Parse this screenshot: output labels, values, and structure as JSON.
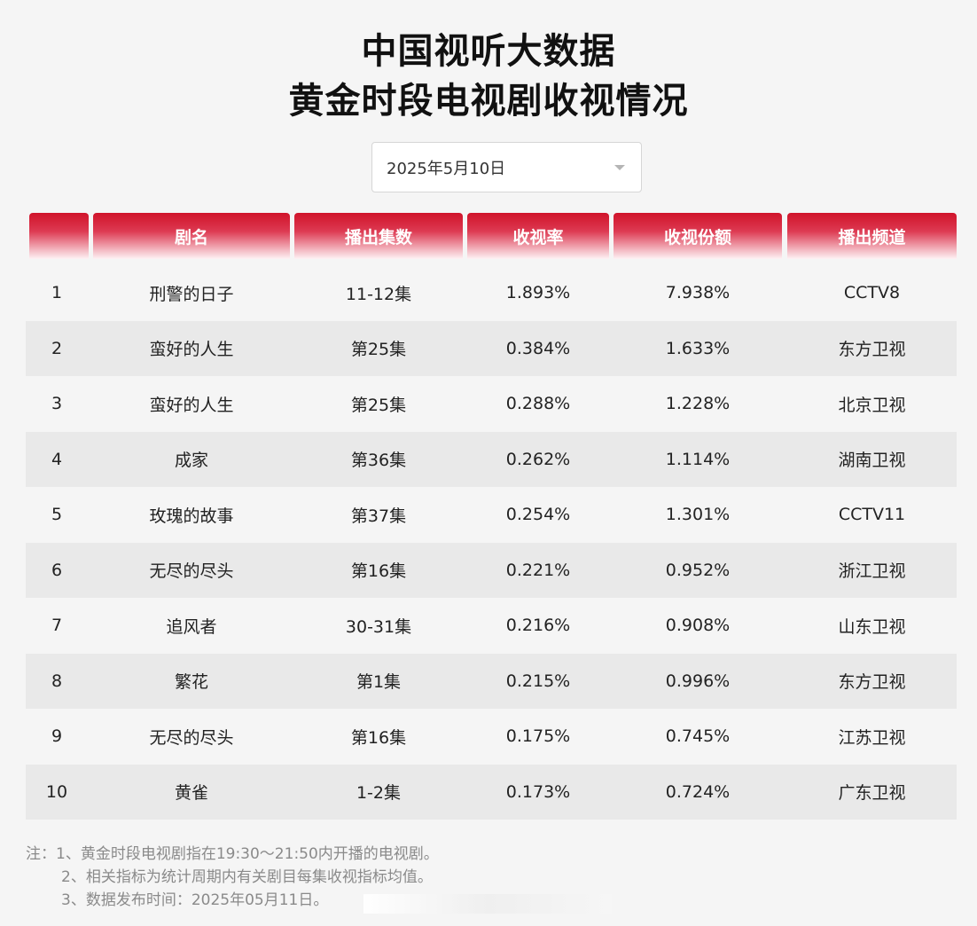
{
  "title": {
    "line1": "中国视听大数据",
    "line2": "黄金时段电视剧收视情况"
  },
  "date_select": {
    "value": "2025年5月10日"
  },
  "table": {
    "headers": [
      "",
      "剧名",
      "播出集数",
      "收视率",
      "收视份额",
      "播出频道"
    ],
    "rows": [
      [
        "1",
        "刑警的日子",
        "11-12集",
        "1.893%",
        "7.938%",
        "CCTV8"
      ],
      [
        "2",
        "蛮好的人生",
        "第25集",
        "0.384%",
        "1.633%",
        "东方卫视"
      ],
      [
        "3",
        "蛮好的人生",
        "第25集",
        "0.288%",
        "1.228%",
        "北京卫视"
      ],
      [
        "4",
        "成家",
        "第36集",
        "0.262%",
        "1.114%",
        "湖南卫视"
      ],
      [
        "5",
        "玫瑰的故事",
        "第37集",
        "0.254%",
        "1.301%",
        "CCTV11"
      ],
      [
        "6",
        "无尽的尽头",
        "第16集",
        "0.221%",
        "0.952%",
        "浙江卫视"
      ],
      [
        "7",
        "追风者",
        "30-31集",
        "0.216%",
        "0.908%",
        "山东卫视"
      ],
      [
        "8",
        "繁花",
        "第1集",
        "0.215%",
        "0.996%",
        "东方卫视"
      ],
      [
        "9",
        "无尽的尽头",
        "第16集",
        "0.175%",
        "0.745%",
        "江苏卫视"
      ],
      [
        "10",
        "黄雀",
        "1-2集",
        "0.173%",
        "0.724%",
        "广东卫视"
      ]
    ]
  },
  "notes": [
    "注：1、黄金时段电视剧指在19:30～21:50内开播的电视剧。",
    "2、相关指标为统计周期内有关剧目每集收视指标均值。",
    "3、数据发布时间：2025年05月11日。"
  ],
  "colors": {
    "header_red": "#d0132a",
    "alt_row": "#e9e9e9",
    "background": "#f5f5f5"
  }
}
